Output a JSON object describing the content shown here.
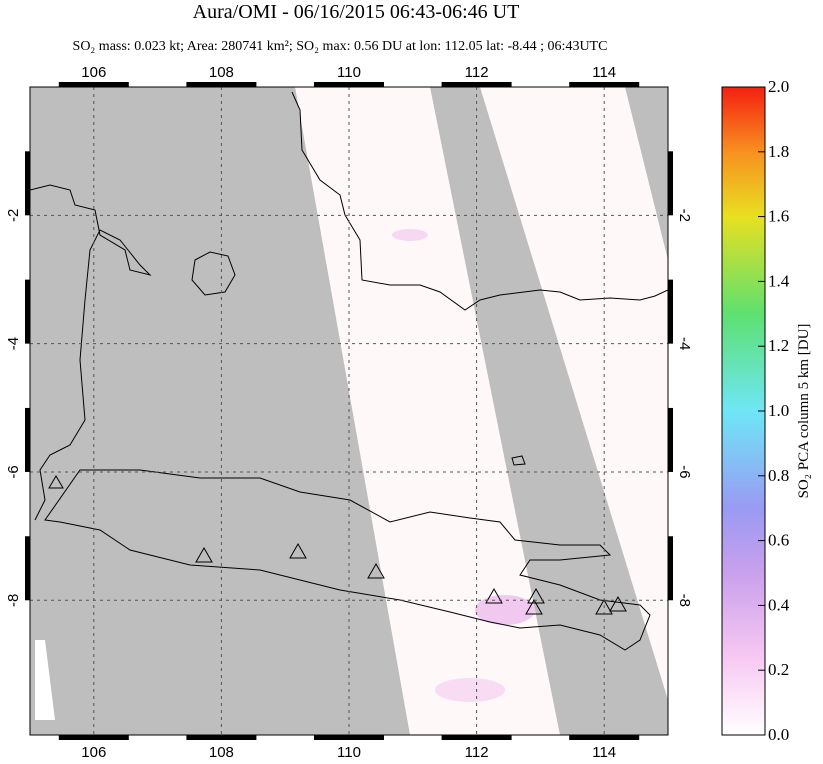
{
  "chart_data": {
    "type": "map",
    "title": "Aura/OMI - 06/16/2015 06:43-06:46 UT",
    "subtitle": "SO₂ mass: 0.023 kt; Area: 280741 km²; SO₂ max: 0.56 DU at lon: 112.05 lat: -8.44 ; 06:43UTC",
    "xlim": [
      105,
      115
    ],
    "xticks": [
      106,
      108,
      110,
      112,
      114
    ],
    "ylim": [
      -10.1,
      0
    ],
    "yticks": [
      -2,
      -4,
      -6,
      -8
    ],
    "grid": true,
    "colorbar": {
      "label": "SO₂ PCA column 5 km [DU]",
      "lim": [
        0,
        2
      ],
      "ticks": [
        {
          "value": 0,
          "label": "0.0"
        },
        {
          "value": 0.2,
          "label": "0.2"
        },
        {
          "value": 0.4,
          "label": "0.4"
        },
        {
          "value": 0.6,
          "label": "0.6"
        },
        {
          "value": 0.8,
          "label": "0.8"
        },
        {
          "value": 1,
          "label": "1.0"
        },
        {
          "value": 1.2,
          "label": "1.2"
        },
        {
          "value": 1.4,
          "label": "1.4"
        },
        {
          "value": 1.6,
          "label": "1.6"
        },
        {
          "value": 1.8,
          "label": "1.8"
        },
        {
          "value": 2,
          "label": "2.0"
        }
      ]
    }
  }
}
